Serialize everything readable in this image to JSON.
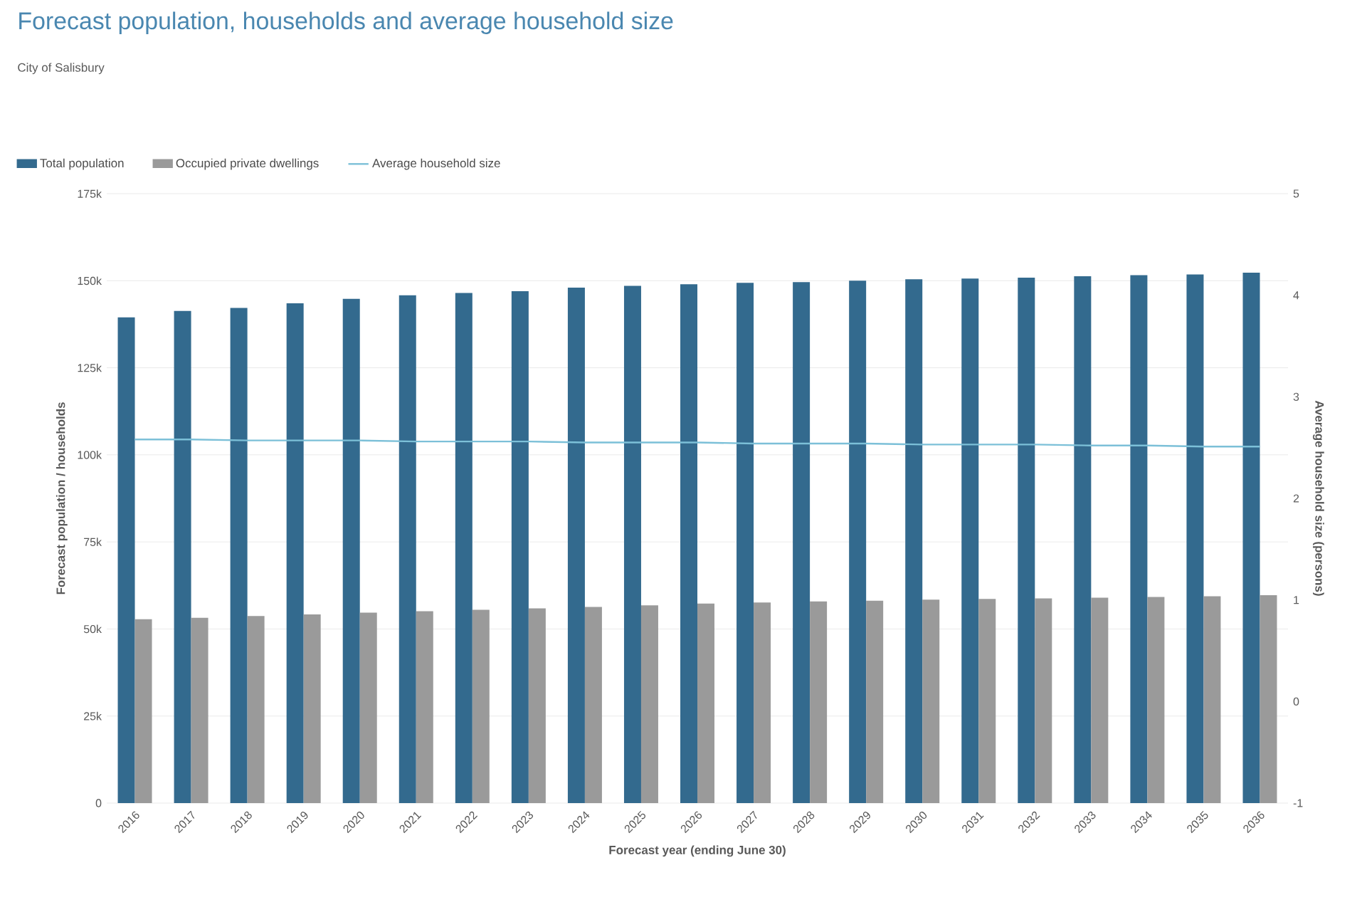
{
  "chart_data": {
    "type": "bar",
    "title": "Forecast population, households and average household size",
    "subtitle": "City of Salisbury",
    "xlabel": "Forecast year (ending June 30)",
    "ylabel": "Forecast population / households",
    "y2label": "Average household size (persons)",
    "categories": [
      "2016",
      "2017",
      "2018",
      "2019",
      "2020",
      "2021",
      "2022",
      "2023",
      "2024",
      "2025",
      "2026",
      "2027",
      "2028",
      "2029",
      "2030",
      "2031",
      "2032",
      "2033",
      "2034",
      "2035",
      "2036"
    ],
    "series": [
      {
        "name": "Total population",
        "color": "#336a8e",
        "values": [
          139500,
          141300,
          142200,
          143500,
          144800,
          145800,
          146500,
          147000,
          148000,
          148500,
          149000,
          149400,
          149600,
          150000,
          150400,
          150600,
          150900,
          151300,
          151600,
          151800,
          152300
        ]
      },
      {
        "name": "Occupied private dwellings",
        "color": "#9a9a9a",
        "values": [
          52800,
          53200,
          53700,
          54200,
          54700,
          55100,
          55500,
          55900,
          56300,
          56800,
          57300,
          57600,
          57900,
          58100,
          58400,
          58600,
          58800,
          59000,
          59200,
          59400,
          59700
        ]
      },
      {
        "name": "Average household size",
        "color": "#7cc0d8",
        "type": "line",
        "axis": "y2",
        "values": [
          2.58,
          2.58,
          2.57,
          2.57,
          2.57,
          2.56,
          2.56,
          2.56,
          2.55,
          2.55,
          2.55,
          2.54,
          2.54,
          2.54,
          2.53,
          2.53,
          2.53,
          2.52,
          2.52,
          2.51,
          2.51
        ]
      }
    ],
    "ylim": [
      0,
      175000
    ],
    "yticks": [
      {
        "value": 0,
        "label": "0"
      },
      {
        "value": 25000,
        "label": "25k"
      },
      {
        "value": 50000,
        "label": "50k"
      },
      {
        "value": 75000,
        "label": "75k"
      },
      {
        "value": 100000,
        "label": "100k"
      },
      {
        "value": 125000,
        "label": "125k"
      },
      {
        "value": 150000,
        "label": "150k"
      },
      {
        "value": 175000,
        "label": "175k"
      }
    ],
    "y2lim": [
      -1,
      5
    ],
    "y2ticks": [
      -1,
      0,
      1,
      2,
      3,
      4,
      5
    ],
    "grid": "y",
    "legend": "top left"
  }
}
